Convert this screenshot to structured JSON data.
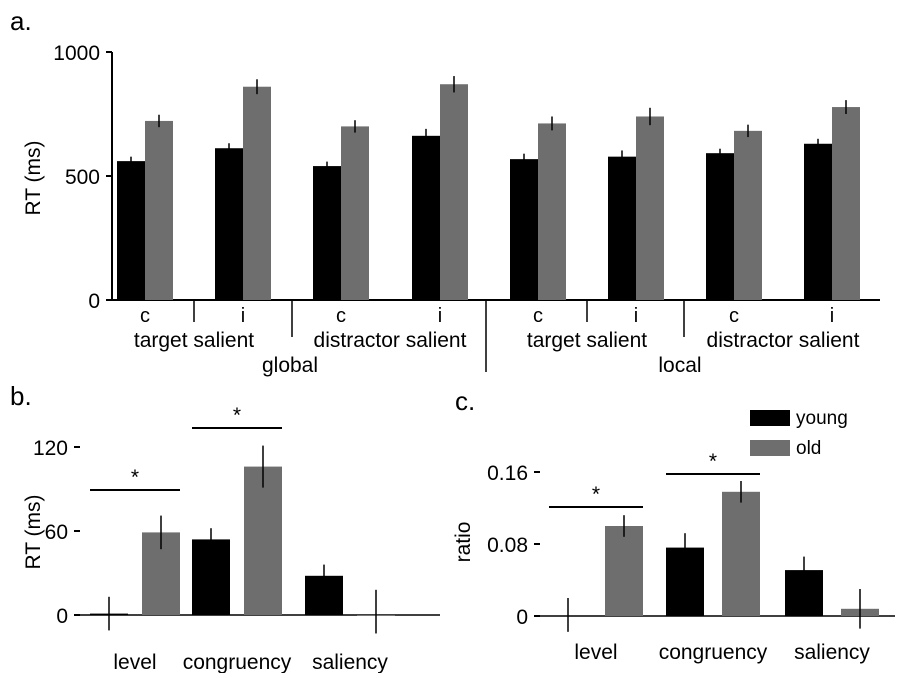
{
  "panels": {
    "a": {
      "label": "a."
    },
    "b": {
      "label": "b."
    },
    "c": {
      "label": "c."
    }
  },
  "legend": {
    "entries": [
      {
        "name": "young",
        "color": "#000000"
      },
      {
        "name": "old",
        "color": "#6e6e6e"
      }
    ]
  },
  "chart_data": [
    {
      "type": "bar",
      "panel": "a",
      "ylabel": "RT (ms)",
      "ylim": [
        0,
        1000
      ],
      "yticks": [
        "0",
        "500",
        "1000"
      ],
      "categories": [
        "c",
        "i",
        "c",
        "i",
        "c",
        "i",
        "c",
        "i"
      ],
      "group_labels": [
        "target salient",
        "distractor salient",
        "target salient",
        "distractor salient"
      ],
      "level_labels": [
        "global",
        "local"
      ],
      "series": [
        {
          "values": [
            560,
            612,
            540,
            662,
            568,
            578,
            592,
            630
          ],
          "errors": [
            18,
            20,
            18,
            28,
            22,
            25,
            18,
            20
          ],
          "color": "#000000"
        },
        {
          "values": [
            722,
            860,
            700,
            870,
            712,
            740,
            682,
            778
          ],
          "errors": [
            25,
            30,
            25,
            33,
            28,
            35,
            25,
            28
          ],
          "color": "#6e6e6e"
        }
      ]
    },
    {
      "type": "bar",
      "panel": "b",
      "ylabel": "RT (ms)",
      "ylim": [
        0,
        120
      ],
      "yticks": [
        "0",
        "60",
        "120"
      ],
      "categories": [
        "level",
        "congruency",
        "saliency"
      ],
      "series": [
        {
          "values": [
            1,
            54,
            28
          ],
          "errors": [
            12,
            8,
            8
          ],
          "color": "#000000"
        },
        {
          "values": [
            59,
            106,
            0
          ],
          "errors": [
            12,
            15,
            18
          ],
          "color": "#6e6e6e"
        }
      ],
      "significance": [
        {
          "category": "level",
          "label": "*"
        },
        {
          "category": "congruency",
          "label": "*"
        }
      ]
    },
    {
      "type": "bar",
      "panel": "c",
      "ylabel": "ratio",
      "ylim": [
        0,
        0.16
      ],
      "yticks": [
        "0",
        "0.08",
        "0.16"
      ],
      "categories": [
        "level",
        "congruency",
        "saliency"
      ],
      "series": [
        {
          "values": [
            0,
            0.076,
            0.051
          ],
          "errors": [
            0.02,
            0.016,
            0.015
          ],
          "color": "#000000"
        },
        {
          "values": [
            0.1,
            0.138,
            0.008
          ],
          "errors": [
            0.012,
            0.012,
            0.022
          ],
          "color": "#6e6e6e"
        }
      ],
      "significance": [
        {
          "category": "level",
          "label": "*"
        },
        {
          "category": "congruency",
          "label": "*"
        }
      ]
    }
  ]
}
